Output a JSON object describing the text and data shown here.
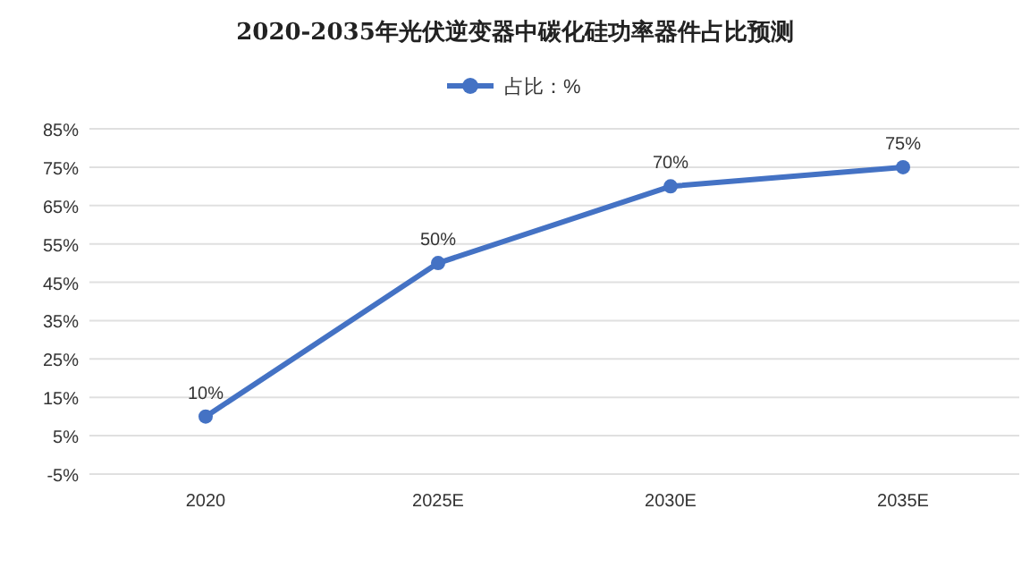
{
  "chart_data": {
    "type": "line",
    "title": "2020-2035年光伏逆变器中碳化硅功率器件占比预测",
    "categories": [
      "2020",
      "2025E",
      "2030E",
      "2035E"
    ],
    "series": [
      {
        "name": "占比：%",
        "color": "#4472c4",
        "values": [
          10,
          50,
          70,
          75
        ]
      }
    ],
    "ylim": [
      -5,
      85
    ],
    "yticks": [
      {
        "value": -5,
        "label": "-5%"
      },
      {
        "value": 5,
        "label": "5%"
      },
      {
        "value": 15,
        "label": "15%"
      },
      {
        "value": 25,
        "label": "25%"
      },
      {
        "value": 35,
        "label": "35%"
      },
      {
        "value": 45,
        "label": "45%"
      },
      {
        "value": 55,
        "label": "55%"
      },
      {
        "value": 65,
        "label": "65%"
      },
      {
        "value": 75,
        "label": "75%"
      },
      {
        "value": 85,
        "label": "85%"
      }
    ],
    "value_labels": [
      "10%",
      "50%",
      "70%",
      "75%"
    ],
    "grid": "y",
    "legend": "top",
    "marker": "circle",
    "line_style": "solid"
  }
}
